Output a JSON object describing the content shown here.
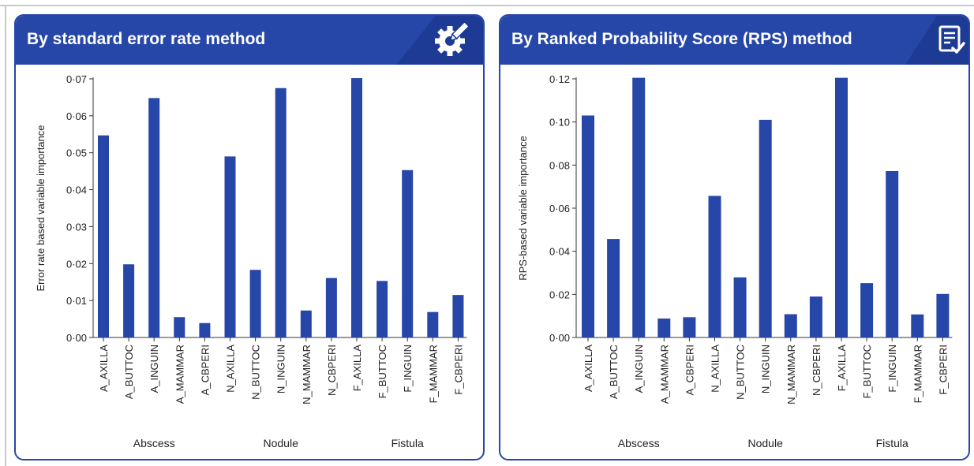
{
  "colors": {
    "accent": "#2747a8",
    "bar": "#2747a8",
    "axis": "#333333"
  },
  "panels": [
    {
      "title": "By standard error rate method",
      "icon": "gear-pencil-icon"
    },
    {
      "title": "By Ranked Probability Score (RPS) method",
      "icon": "checklist-icon"
    }
  ],
  "chart_data": [
    {
      "type": "bar",
      "title": "By standard error rate method",
      "categories": [
        "A_AXILLA",
        "A_BUTTOC",
        "A_INGUIN",
        "A_MAMMAR",
        "A_CBPERI",
        "N_AXILLA",
        "N_BUTTOC",
        "N_INGUIN",
        "N_MAMMAR",
        "N_CBPERI",
        "F_AXILLA",
        "F_BUTTOC",
        "F_INGUIN",
        "F_MAMMAR",
        "F_CBPERI"
      ],
      "values": [
        0.0547,
        0.0198,
        0.0648,
        0.0055,
        0.0039,
        0.049,
        0.0183,
        0.0675,
        0.0073,
        0.0161,
        0.0702,
        0.0153,
        0.0453,
        0.0069,
        0.0115
      ],
      "groups": [
        {
          "label": "Abscess",
          "start": 0,
          "end": 4
        },
        {
          "label": "Nodule",
          "start": 5,
          "end": 9
        },
        {
          "label": "Fistula",
          "start": 10,
          "end": 14
        }
      ],
      "ylabel": "Error rate based variable importance",
      "xlabel": "",
      "ylim": [
        0,
        0.07
      ],
      "yticks": [
        0,
        0.01,
        0.02,
        0.03,
        0.04,
        0.05,
        0.06,
        0.07
      ],
      "ytick_labels": [
        "0·00",
        "0·01",
        "0·02",
        "0·03",
        "0·04",
        "0·05",
        "0·06",
        "0·07"
      ],
      "grid": false,
      "legend": "none"
    },
    {
      "type": "bar",
      "title": "By Ranked Probability Score (RPS) method",
      "categories": [
        "A_AXILLA",
        "A_BUTTOC",
        "A_INGUIN",
        "A_MAMMAR",
        "A_CBPERI",
        "N_AXILLA",
        "N_BUTTOC",
        "N_INGUIN",
        "N_MAMMAR",
        "N_CBPERI",
        "F_AXILLA",
        "F_BUTTOC",
        "F_INGUIN",
        "F_MAMMAR",
        "F_CBPERI"
      ],
      "values": [
        0.103,
        0.0457,
        0.1205,
        0.0088,
        0.0094,
        0.0657,
        0.0279,
        0.101,
        0.0108,
        0.019,
        0.1205,
        0.0252,
        0.0772,
        0.0107,
        0.0202
      ],
      "groups": [
        {
          "label": "Abscess",
          "start": 0,
          "end": 4
        },
        {
          "label": "Nodule",
          "start": 5,
          "end": 9
        },
        {
          "label": "Fistula",
          "start": 10,
          "end": 14
        }
      ],
      "ylabel": "RPS-based variable importance",
      "xlabel": "",
      "ylim": [
        0,
        0.12
      ],
      "yticks": [
        0,
        0.02,
        0.04,
        0.06,
        0.08,
        0.1,
        0.12
      ],
      "ytick_labels": [
        "0·00",
        "0·02",
        "0·04",
        "0·06",
        "0·08",
        "0·10",
        "0·12"
      ],
      "grid": false,
      "legend": "none"
    }
  ]
}
